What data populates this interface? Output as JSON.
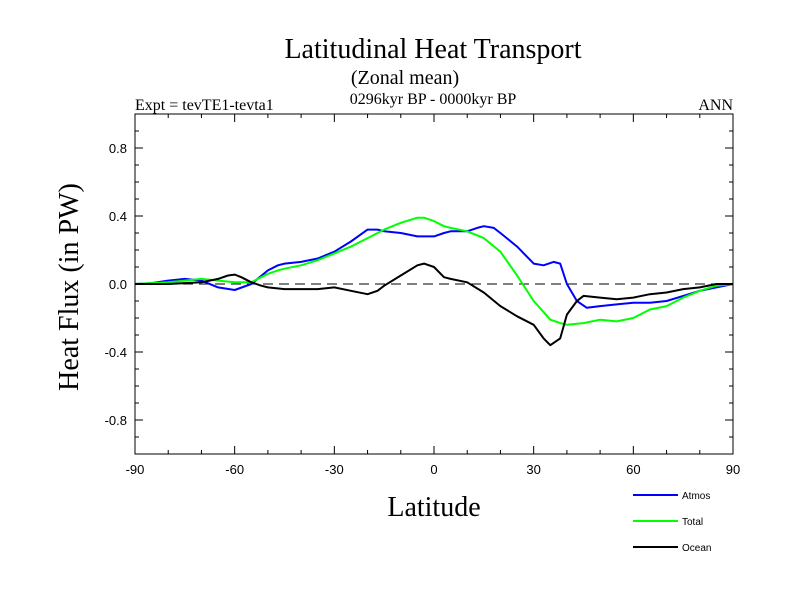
{
  "chart_data": {
    "type": "line",
    "title": "Latitudinal Heat Transport",
    "subtitle": "(Zonal mean)",
    "period": "0296kyr BP - 0000kyr BP",
    "experiment": "Expt = tevTE1-tevta1",
    "season": "ANN",
    "xlabel": "Latitude",
    "ylabel": "Heat Flux (in PW)",
    "xlim": [
      -90,
      90
    ],
    "ylim": [
      -1.0,
      1.0
    ],
    "xticks": [
      -90,
      -60,
      -30,
      0,
      30,
      60,
      90
    ],
    "xtick_labels": [
      "-90",
      "-60",
      "-30",
      "0",
      "30",
      "60",
      "90"
    ],
    "yticks": [
      -0.8,
      -0.4,
      0.0,
      0.4,
      0.8
    ],
    "ytick_labels": [
      "-0.8",
      "-0.4",
      "0.0",
      "0.4",
      "0.8"
    ],
    "zero_line": true,
    "series": [
      {
        "name": "Atmos",
        "color": "#0000ff",
        "x": [
          -90,
          -85,
          -80,
          -75,
          -70,
          -65,
          -60,
          -55,
          -50,
          -47,
          -45,
          -40,
          -35,
          -30,
          -25,
          -20,
          -17,
          -15,
          -10,
          -5,
          0,
          3,
          5,
          10,
          13,
          15,
          18,
          20,
          25,
          30,
          33,
          36,
          38,
          40,
          43,
          46,
          50,
          55,
          60,
          65,
          70,
          75,
          80,
          85,
          90
        ],
        "y": [
          0.0,
          0.005,
          0.02,
          0.03,
          0.02,
          -0.02,
          -0.035,
          0.0,
          0.08,
          0.11,
          0.12,
          0.13,
          0.15,
          0.19,
          0.25,
          0.32,
          0.32,
          0.31,
          0.3,
          0.28,
          0.28,
          0.3,
          0.31,
          0.31,
          0.33,
          0.34,
          0.33,
          0.3,
          0.22,
          0.12,
          0.11,
          0.13,
          0.12,
          0.0,
          -0.1,
          -0.14,
          -0.13,
          -0.12,
          -0.11,
          -0.11,
          -0.1,
          -0.07,
          -0.04,
          -0.02,
          0.0
        ]
      },
      {
        "name": "Total",
        "color": "#00ff00",
        "x": [
          -90,
          -85,
          -80,
          -75,
          -70,
          -65,
          -60,
          -55,
          -50,
          -47,
          -45,
          -40,
          -35,
          -30,
          -25,
          -20,
          -15,
          -10,
          -5,
          -3,
          0,
          3,
          5,
          10,
          15,
          20,
          25,
          30,
          35,
          38,
          40,
          45,
          50,
          55,
          60,
          65,
          70,
          75,
          80,
          85,
          90
        ],
        "y": [
          0.0,
          0.005,
          0.01,
          0.02,
          0.03,
          0.02,
          0.01,
          0.01,
          0.06,
          0.08,
          0.09,
          0.11,
          0.14,
          0.18,
          0.22,
          0.27,
          0.32,
          0.36,
          0.39,
          0.39,
          0.37,
          0.34,
          0.33,
          0.31,
          0.27,
          0.19,
          0.05,
          -0.1,
          -0.21,
          -0.23,
          -0.24,
          -0.23,
          -0.21,
          -0.22,
          -0.2,
          -0.15,
          -0.13,
          -0.08,
          -0.04,
          -0.01,
          0.0
        ]
      },
      {
        "name": "Ocean",
        "color": "#000000",
        "x": [
          -90,
          -85,
          -80,
          -75,
          -70,
          -65,
          -62,
          -60,
          -58,
          -55,
          -52,
          -50,
          -45,
          -40,
          -35,
          -30,
          -25,
          -20,
          -17,
          -15,
          -10,
          -5,
          -3,
          0,
          3,
          5,
          10,
          15,
          20,
          25,
          30,
          33,
          35,
          38,
          40,
          43,
          45,
          50,
          55,
          60,
          65,
          70,
          75,
          80,
          85,
          90
        ],
        "y": [
          0.0,
          0.0,
          0.0,
          0.005,
          0.01,
          0.03,
          0.05,
          0.055,
          0.04,
          0.01,
          -0.01,
          -0.02,
          -0.03,
          -0.03,
          -0.03,
          -0.02,
          -0.04,
          -0.06,
          -0.04,
          -0.01,
          0.05,
          0.11,
          0.12,
          0.1,
          0.04,
          0.03,
          0.01,
          -0.05,
          -0.13,
          -0.19,
          -0.24,
          -0.32,
          -0.36,
          -0.32,
          -0.18,
          -0.1,
          -0.07,
          -0.08,
          -0.09,
          -0.08,
          -0.06,
          -0.05,
          -0.03,
          -0.02,
          0.0,
          0.0
        ]
      }
    ]
  }
}
